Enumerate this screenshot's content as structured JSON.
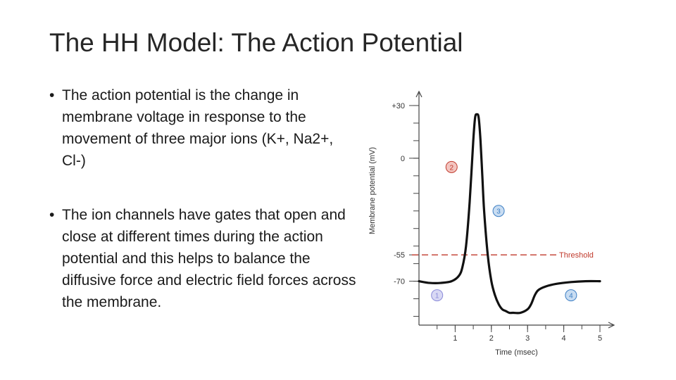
{
  "slide": {
    "title": "The HH Model: The Action Potential",
    "bullets": [
      "The action potential is the change in membrane voltage in response to the movement of three major ions (K+, Na2+, Cl-)",
      "The ion channels have gates that open and close at different times during the action potential and this helps to balance the diffusive force and electric field forces across the membrane."
    ]
  },
  "chart_data": {
    "type": "line",
    "xlabel": "Time (msec)",
    "ylabel": "Membrane potential (mV)",
    "x_ticks": [
      1,
      2,
      3,
      4,
      5
    ],
    "y_tick_labels": [
      "+30",
      "0",
      "-55",
      "-70"
    ],
    "y_tick_values": [
      30,
      0,
      -55,
      -70
    ],
    "xlim": [
      0,
      5
    ],
    "ylim": [
      -95,
      38
    ],
    "grid": false,
    "series": [
      {
        "x": [
          0,
          0.3,
          0.6,
          0.9,
          1.1,
          1.2,
          1.3,
          1.4,
          1.5,
          1.55,
          1.6,
          1.65,
          1.7,
          1.75,
          1.8,
          1.9,
          2.0,
          2.1,
          2.2,
          2.3,
          2.4,
          2.5,
          2.6,
          2.8,
          3.0,
          3.1,
          3.2,
          3.3,
          3.5,
          3.8,
          4.2,
          4.6,
          5.0
        ],
        "y": [
          -70,
          -71,
          -71,
          -70,
          -67,
          -62,
          -50,
          -25,
          10,
          23,
          25,
          23,
          10,
          -10,
          -30,
          -55,
          -70,
          -78,
          -83,
          -86,
          -87,
          -88,
          -88,
          -88,
          -86,
          -83,
          -78,
          -75,
          -73,
          -71.5,
          -70.5,
          -70,
          -70
        ]
      }
    ],
    "threshold": {
      "value": -55,
      "label": "Threshold",
      "color": "#c0392b"
    },
    "markers": [
      {
        "label": "1",
        "x": 0.5,
        "y": -78,
        "color": "#8b8bd9",
        "fill": "#d8d8f4"
      },
      {
        "label": "2",
        "x": 0.9,
        "y": -5,
        "color": "#c0392b",
        "fill": "#f3c5c0"
      },
      {
        "label": "3",
        "x": 2.2,
        "y": -30,
        "color": "#3d7fc4",
        "fill": "#c9ddf2"
      },
      {
        "label": "4",
        "x": 4.2,
        "y": -78,
        "color": "#3d7fc4",
        "fill": "#c9ddf2"
      }
    ],
    "colors": {
      "line": "#111111",
      "axis": "#444444",
      "text": "#333333"
    }
  }
}
